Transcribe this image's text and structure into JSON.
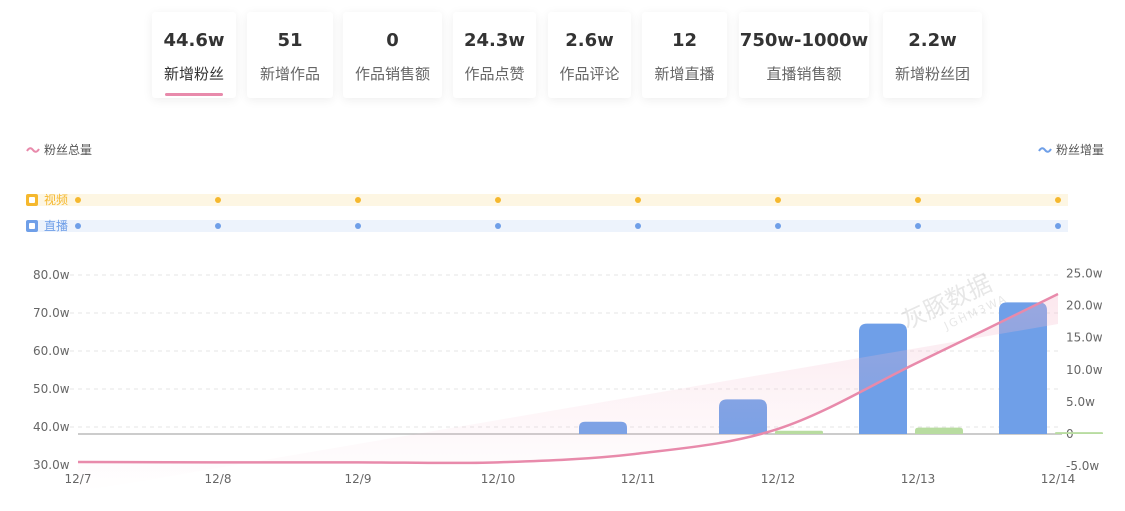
{
  "stats": [
    {
      "value": "44.6w",
      "label": "新增粉丝",
      "active": true
    },
    {
      "value": "51",
      "label": "新增作品"
    },
    {
      "value": "0",
      "label": "作品销售额"
    },
    {
      "value": "24.3w",
      "label": "作品点赞"
    },
    {
      "value": "2.6w",
      "label": "作品评论"
    },
    {
      "value": "12",
      "label": "新增直播"
    },
    {
      "value": "750w-1000w",
      "label": "直播销售额"
    },
    {
      "value": "2.2w",
      "label": "新增粉丝团"
    }
  ],
  "legend": {
    "left": "粉丝总量",
    "right": "粉丝增量"
  },
  "watermark": {
    "main": "灰豚数据",
    "sub": "JGHM3WA"
  },
  "chart_data": {
    "type": "line+bar",
    "x": [
      "12/7",
      "12/8",
      "12/9",
      "12/10",
      "12/11",
      "12/12",
      "12/13",
      "12/14"
    ],
    "event_rows": [
      {
        "name": "视频",
        "color": "#f5b82e"
      },
      {
        "name": "直播",
        "color": "#6f9fe8"
      }
    ],
    "left_axis": {
      "ticks": [
        "30.0w",
        "40.0w",
        "50.0w",
        "60.0w",
        "70.0w",
        "80.0w"
      ],
      "min": 30,
      "max": 80
    },
    "right_axis": {
      "ticks": [
        "-5.0w",
        "0",
        "5.0w",
        "10.0w",
        "15.0w",
        "20.0w",
        "25.0w"
      ],
      "min": -5,
      "max": 25
    },
    "series": [
      {
        "name": "粉丝总量",
        "type": "line",
        "axis": "left",
        "color": "#e88aab",
        "values": [
          30.8,
          30.7,
          30.7,
          30.7,
          33.0,
          39.5,
          57.0,
          75.0
        ]
      },
      {
        "name": "粉丝增量",
        "type": "bar",
        "axis": "right",
        "color": "#6f9fe8",
        "bars": [
          {
            "x": 3.75,
            "value": 1.9
          },
          {
            "x": 4.75,
            "value": 5.4
          },
          {
            "x": 5.75,
            "value": 17.2
          },
          {
            "x": 6.75,
            "value": 20.5
          }
        ]
      },
      {
        "type": "bar",
        "axis": "right",
        "color": "#b8dca0",
        "bars": [
          {
            "x": 5.15,
            "value": 0.5
          },
          {
            "x": 6.15,
            "value": 1.0
          },
          {
            "x": 7.15,
            "value": 0.3
          }
        ]
      }
    ]
  }
}
